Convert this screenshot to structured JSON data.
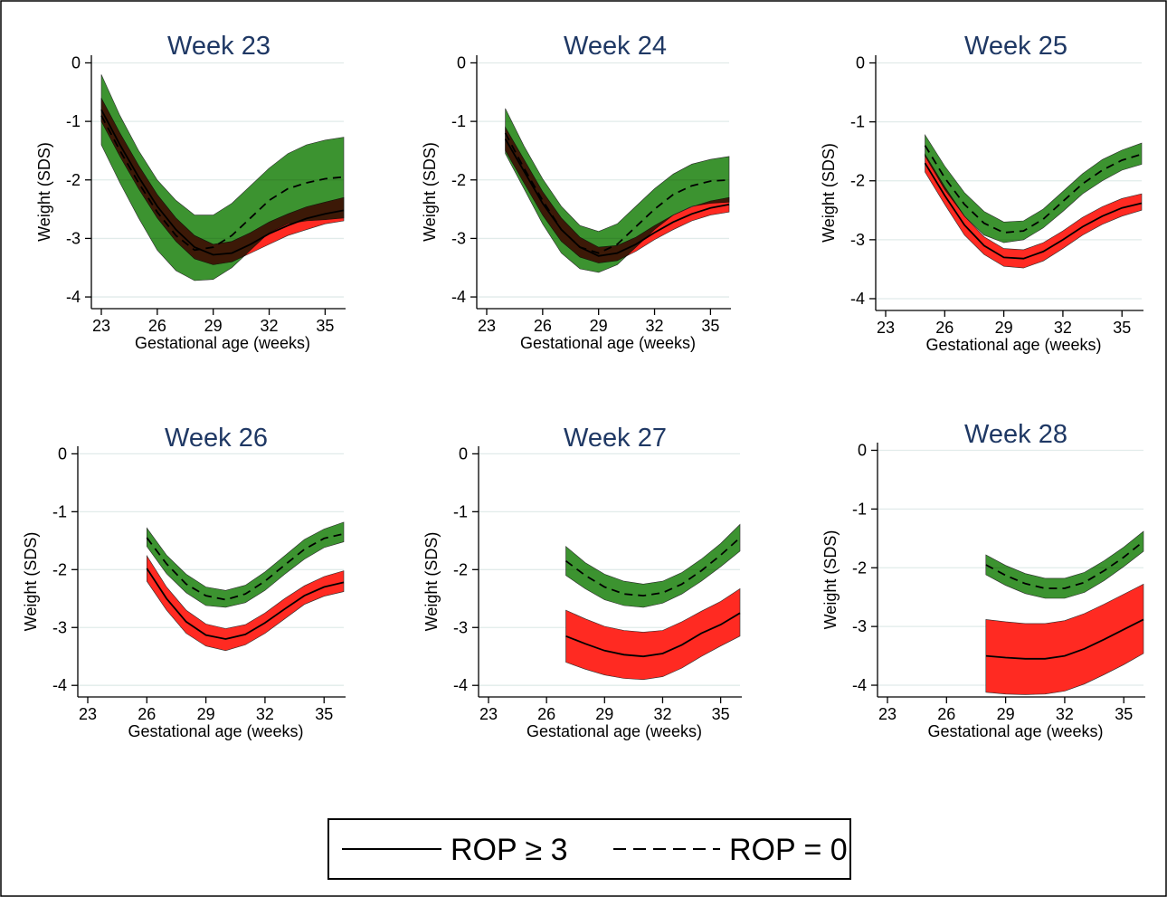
{
  "colors": {
    "rop_high_band": "#ff2a22",
    "rop_zero_band": "#2b8a1e",
    "overlap_band": "#a5681c",
    "title": "#1f3864",
    "grid": "#e1ebea"
  },
  "legend": {
    "solid_label": "ROP ≥ 3",
    "dashed_label": "ROP = 0"
  },
  "chart_data": [
    {
      "type": "line",
      "title": "Week 23",
      "xlabel": "Gestational age (weeks)",
      "ylabel": "Weight (SDS)",
      "xlim": [
        23,
        36
      ],
      "ylim": [
        -4.2,
        0.1
      ],
      "xticks": [
        "23",
        "26",
        "29",
        "32",
        "35"
      ],
      "yticks": [
        "0",
        "-1",
        "-2",
        "-3",
        "-4"
      ],
      "grid": true,
      "series": [
        {
          "name": "ROP ≥ 3",
          "style": "solid",
          "band": "red",
          "x": [
            23,
            24,
            25,
            26,
            27,
            28,
            29,
            30,
            31,
            32,
            33,
            34,
            35,
            36
          ],
          "y": [
            -0.8,
            -1.4,
            -1.95,
            -2.45,
            -2.85,
            -3.15,
            -3.28,
            -3.25,
            -3.1,
            -2.92,
            -2.78,
            -2.66,
            -2.58,
            -2.52
          ],
          "lower": [
            -1.0,
            -1.6,
            -2.15,
            -2.65,
            -3.05,
            -3.35,
            -3.45,
            -3.4,
            -3.25,
            -3.1,
            -2.95,
            -2.85,
            -2.75,
            -2.7
          ],
          "upper": [
            -0.6,
            -1.2,
            -1.75,
            -2.25,
            -2.65,
            -2.95,
            -3.1,
            -3.05,
            -2.9,
            -2.72,
            -2.58,
            -2.46,
            -2.38,
            -2.3
          ]
        },
        {
          "name": "ROP = 0",
          "style": "dashed",
          "band": "green",
          "x": [
            23,
            24,
            25,
            26,
            27,
            28,
            29,
            30,
            31,
            32,
            33,
            34,
            35,
            36
          ],
          "y": [
            -0.9,
            -1.5,
            -2.05,
            -2.55,
            -2.95,
            -3.2,
            -3.15,
            -2.95,
            -2.65,
            -2.35,
            -2.15,
            -2.05,
            -1.98,
            -1.95
          ],
          "lower": [
            -1.4,
            -2.05,
            -2.65,
            -3.2,
            -3.55,
            -3.72,
            -3.7,
            -3.5,
            -3.2,
            -2.9,
            -2.75,
            -2.7,
            -2.68,
            -2.65
          ],
          "upper": [
            -0.2,
            -0.9,
            -1.5,
            -2.0,
            -2.35,
            -2.6,
            -2.6,
            -2.4,
            -2.1,
            -1.8,
            -1.55,
            -1.4,
            -1.32,
            -1.27
          ]
        }
      ]
    },
    {
      "type": "line",
      "title": "Week 24",
      "xlabel": "Gestational age (weeks)",
      "ylabel": "Weight (SDS)",
      "xlim": [
        23,
        36
      ],
      "ylim": [
        -4.2,
        0.1
      ],
      "xticks": [
        "23",
        "26",
        "29",
        "32",
        "35"
      ],
      "yticks": [
        "0",
        "-1",
        "-2",
        "-3",
        "-4"
      ],
      "grid": true,
      "series": [
        {
          "name": "ROP ≥ 3",
          "style": "solid",
          "band": "red",
          "x": [
            24,
            25,
            26,
            27,
            28,
            29,
            30,
            31,
            32,
            33,
            34,
            35,
            36
          ],
          "y": [
            -1.3,
            -1.85,
            -2.4,
            -2.85,
            -3.15,
            -3.3,
            -3.25,
            -3.1,
            -2.9,
            -2.72,
            -2.58,
            -2.48,
            -2.42
          ],
          "lower": [
            -1.5,
            -2.05,
            -2.6,
            -3.05,
            -3.32,
            -3.42,
            -3.38,
            -3.22,
            -3.02,
            -2.85,
            -2.7,
            -2.6,
            -2.55
          ],
          "upper": [
            -1.1,
            -1.65,
            -2.2,
            -2.65,
            -2.98,
            -3.15,
            -3.12,
            -2.98,
            -2.78,
            -2.6,
            -2.46,
            -2.36,
            -2.3
          ]
        },
        {
          "name": "ROP = 0",
          "style": "dashed",
          "band": "green",
          "x": [
            24,
            25,
            26,
            27,
            28,
            29,
            30,
            31,
            32,
            33,
            34,
            35,
            36
          ],
          "y": [
            -1.2,
            -1.8,
            -2.35,
            -2.85,
            -3.15,
            -3.25,
            -3.1,
            -2.8,
            -2.5,
            -2.25,
            -2.1,
            -2.02,
            -2.0
          ],
          "lower": [
            -1.55,
            -2.15,
            -2.75,
            -3.25,
            -3.52,
            -3.58,
            -3.45,
            -3.15,
            -2.85,
            -2.6,
            -2.45,
            -2.4,
            -2.38
          ],
          "upper": [
            -0.78,
            -1.42,
            -1.98,
            -2.45,
            -2.78,
            -2.88,
            -2.75,
            -2.45,
            -2.15,
            -1.9,
            -1.73,
            -1.65,
            -1.6
          ]
        }
      ]
    },
    {
      "type": "line",
      "title": "Week 25",
      "xlabel": "Gestational age (weeks)",
      "ylabel": "Weight (SDS)",
      "xlim": [
        23,
        36
      ],
      "ylim": [
        -4.2,
        0.1
      ],
      "xticks": [
        "23",
        "26",
        "29",
        "32",
        "35"
      ],
      "yticks": [
        "0",
        "-1",
        "-2",
        "-3",
        "-4"
      ],
      "grid": true,
      "series": [
        {
          "name": "ROP ≥ 3",
          "style": "solid",
          "band": "red",
          "x": [
            25,
            26,
            27,
            28,
            29,
            30,
            31,
            32,
            33,
            34,
            35,
            36
          ],
          "y": [
            -1.7,
            -2.25,
            -2.75,
            -3.1,
            -3.3,
            -3.32,
            -3.2,
            -3.0,
            -2.78,
            -2.6,
            -2.46,
            -2.38
          ],
          "lower": [
            -1.85,
            -2.4,
            -2.92,
            -3.25,
            -3.45,
            -3.48,
            -3.36,
            -3.15,
            -2.92,
            -2.74,
            -2.6,
            -2.5
          ],
          "upper": [
            -1.55,
            -2.1,
            -2.6,
            -2.95,
            -3.15,
            -3.17,
            -3.05,
            -2.85,
            -2.62,
            -2.44,
            -2.3,
            -2.22
          ]
        },
        {
          "name": "ROP = 0",
          "style": "dashed",
          "band": "green",
          "x": [
            25,
            26,
            27,
            28,
            29,
            30,
            31,
            32,
            33,
            34,
            35,
            36
          ],
          "y": [
            -1.4,
            -1.95,
            -2.4,
            -2.72,
            -2.88,
            -2.85,
            -2.65,
            -2.35,
            -2.05,
            -1.82,
            -1.65,
            -1.55
          ],
          "lower": [
            -1.58,
            -2.15,
            -2.6,
            -2.92,
            -3.05,
            -3.0,
            -2.8,
            -2.52,
            -2.22,
            -2.0,
            -1.82,
            -1.72
          ],
          "upper": [
            -1.22,
            -1.75,
            -2.2,
            -2.52,
            -2.7,
            -2.68,
            -2.48,
            -2.18,
            -1.88,
            -1.64,
            -1.48,
            -1.36
          ]
        }
      ]
    },
    {
      "type": "line",
      "title": "Week 26",
      "xlabel": "Gestational age (weeks)",
      "ylabel": "Weight (SDS)",
      "xlim": [
        23,
        36
      ],
      "ylim": [
        -4.2,
        0.1
      ],
      "xticks": [
        "23",
        "26",
        "29",
        "32",
        "35"
      ],
      "yticks": [
        "0",
        "-1",
        "-2",
        "-3",
        "-4"
      ],
      "grid": true,
      "series": [
        {
          "name": "ROP ≥ 3",
          "style": "solid",
          "band": "red",
          "x": [
            26,
            27,
            28,
            29,
            30,
            31,
            32,
            33,
            34,
            35,
            36
          ],
          "y": [
            -1.98,
            -2.5,
            -2.9,
            -3.13,
            -3.2,
            -3.12,
            -2.92,
            -2.68,
            -2.45,
            -2.3,
            -2.22
          ],
          "lower": [
            -2.2,
            -2.7,
            -3.1,
            -3.32,
            -3.4,
            -3.3,
            -3.1,
            -2.85,
            -2.6,
            -2.46,
            -2.38
          ],
          "upper": [
            -1.76,
            -2.3,
            -2.7,
            -2.94,
            -3.02,
            -2.95,
            -2.75,
            -2.5,
            -2.28,
            -2.12,
            -2.02
          ]
        },
        {
          "name": "ROP = 0",
          "style": "dashed",
          "band": "green",
          "x": [
            26,
            27,
            28,
            29,
            30,
            31,
            32,
            33,
            34,
            35,
            36
          ],
          "y": [
            -1.45,
            -1.9,
            -2.25,
            -2.45,
            -2.52,
            -2.42,
            -2.2,
            -1.92,
            -1.65,
            -1.46,
            -1.38
          ],
          "lower": [
            -1.6,
            -2.07,
            -2.4,
            -2.62,
            -2.65,
            -2.57,
            -2.36,
            -2.08,
            -1.82,
            -1.62,
            -1.52
          ],
          "upper": [
            -1.28,
            -1.75,
            -2.08,
            -2.3,
            -2.36,
            -2.27,
            -2.04,
            -1.76,
            -1.48,
            -1.3,
            -1.18
          ]
        }
      ]
    },
    {
      "type": "line",
      "title": "Week 27",
      "xlabel": "Gestational age (weeks)",
      "ylabel": "Weight (SDS)",
      "xlim": [
        23,
        36
      ],
      "ylim": [
        -4.2,
        0.1
      ],
      "xticks": [
        "23",
        "26",
        "29",
        "32",
        "35"
      ],
      "yticks": [
        "0",
        "-1",
        "-2",
        "-3",
        "-4"
      ],
      "grid": true,
      "series": [
        {
          "name": "ROP ≥ 3",
          "style": "solid",
          "band": "red",
          "x": [
            27,
            28,
            29,
            30,
            31,
            32,
            33,
            34,
            35,
            36
          ],
          "y": [
            -3.15,
            -3.28,
            -3.4,
            -3.47,
            -3.5,
            -3.45,
            -3.3,
            -3.1,
            -2.95,
            -2.75
          ],
          "lower": [
            -3.6,
            -3.72,
            -3.82,
            -3.88,
            -3.9,
            -3.85,
            -3.7,
            -3.5,
            -3.32,
            -3.15
          ],
          "upper": [
            -2.7,
            -2.85,
            -2.98,
            -3.05,
            -3.08,
            -3.05,
            -2.9,
            -2.72,
            -2.55,
            -2.33
          ]
        },
        {
          "name": "ROP = 0",
          "style": "dashed",
          "band": "green",
          "x": [
            27,
            28,
            29,
            30,
            31,
            32,
            33,
            34,
            35,
            36
          ],
          "y": [
            -1.85,
            -2.1,
            -2.3,
            -2.42,
            -2.45,
            -2.4,
            -2.25,
            -2.02,
            -1.75,
            -1.45
          ],
          "lower": [
            -2.1,
            -2.33,
            -2.52,
            -2.62,
            -2.65,
            -2.58,
            -2.42,
            -2.2,
            -1.95,
            -1.68
          ],
          "upper": [
            -1.6,
            -1.88,
            -2.08,
            -2.2,
            -2.25,
            -2.2,
            -2.05,
            -1.82,
            -1.55,
            -1.22
          ]
        }
      ]
    },
    {
      "type": "line",
      "title": "Week 28",
      "xlabel": "Gestational age (weeks)",
      "ylabel": "Weight (SDS)",
      "xlim": [
        23,
        36
      ],
      "ylim": [
        -4.2,
        0.1
      ],
      "xticks": [
        "23",
        "26",
        "29",
        "32",
        "35"
      ],
      "yticks": [
        "0",
        "-1",
        "-2",
        "-3",
        "-4"
      ],
      "grid": true,
      "series": [
        {
          "name": "ROP ≥ 3",
          "style": "solid",
          "band": "red",
          "x": [
            28,
            29,
            30,
            31,
            32,
            33,
            34,
            35,
            36
          ],
          "y": [
            -3.5,
            -3.53,
            -3.55,
            -3.55,
            -3.5,
            -3.38,
            -3.22,
            -3.05,
            -2.88
          ],
          "lower": [
            -4.12,
            -4.15,
            -4.16,
            -4.15,
            -4.1,
            -3.98,
            -3.82,
            -3.65,
            -3.46
          ],
          "upper": [
            -2.88,
            -2.92,
            -2.95,
            -2.95,
            -2.9,
            -2.78,
            -2.62,
            -2.45,
            -2.28
          ]
        },
        {
          "name": "ROP = 0",
          "style": "dashed",
          "band": "green",
          "x": [
            28,
            29,
            30,
            31,
            32,
            33,
            34,
            35,
            36
          ],
          "y": [
            -1.95,
            -2.13,
            -2.27,
            -2.35,
            -2.35,
            -2.25,
            -2.05,
            -1.82,
            -1.55
          ],
          "lower": [
            -2.12,
            -2.3,
            -2.44,
            -2.52,
            -2.52,
            -2.42,
            -2.22,
            -1.98,
            -1.72
          ],
          "upper": [
            -1.78,
            -1.96,
            -2.1,
            -2.18,
            -2.18,
            -2.08,
            -1.88,
            -1.65,
            -1.38
          ]
        }
      ]
    }
  ]
}
